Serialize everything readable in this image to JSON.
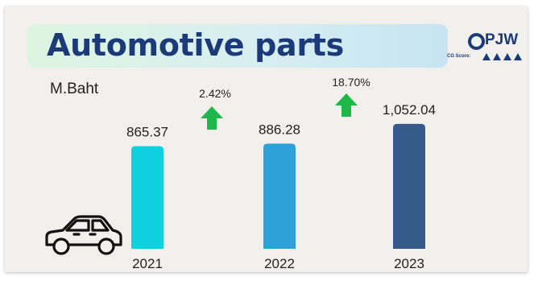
{
  "header": {
    "title": "Automotive parts",
    "logo_text": "PJW",
    "cg_score_label": "CG Score:",
    "cg_score_stars": 4
  },
  "unit_label": "M.Baht",
  "icons": [
    "car-icon",
    "up-arrow-icon",
    "target-icon"
  ],
  "colors": {
    "bar_2021": "#0fd0de",
    "bar_2022": "#2ea2d8",
    "bar_2023": "#355a8a",
    "arrow": "#1fb74a",
    "title": "#1c3a78"
  },
  "chart_data": {
    "type": "bar",
    "title": "Automotive parts",
    "ylabel": "M.Baht",
    "categories": [
      "2021",
      "2022",
      "2023"
    ],
    "values": [
      865.37,
      886.28,
      1052.04
    ],
    "data_labels": [
      "865.37",
      "886.28",
      "1,052.04"
    ],
    "growth": [
      {
        "between": [
          "2021",
          "2022"
        ],
        "label": "2.42%"
      },
      {
        "between": [
          "2022",
          "2023"
        ],
        "label": "18.70%"
      }
    ]
  }
}
